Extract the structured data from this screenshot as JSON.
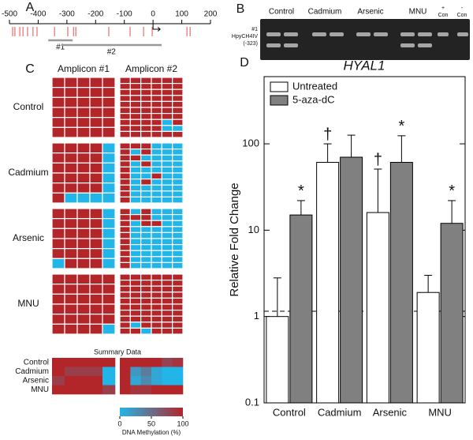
{
  "panel_labels": [
    "A",
    "B",
    "C",
    "D"
  ],
  "panel_a": {
    "xlim": [
      -500,
      200
    ],
    "xticks": [
      -500,
      -400,
      -300,
      -200,
      -100,
      0,
      100,
      200
    ],
    "cpg_sites": [
      -489,
      -481,
      -464,
      -453,
      -437,
      -418,
      -404,
      -343,
      -297,
      -277,
      -269,
      -154,
      -80,
      -33,
      -3,
      118,
      129
    ],
    "amplicons": [
      {
        "label": "#1",
        "range": [
          -365,
          -280
        ]
      },
      {
        "label": "#2",
        "range": [
          -320,
          30
        ]
      }
    ]
  },
  "panel_b": {
    "lanes": [
      "Control",
      "Cadmium",
      "Arsenic",
      "MNU"
    ],
    "controls": [
      [
        "+",
        "Con"
      ],
      [
        "-",
        "Con"
      ]
    ],
    "side_label": [
      "#1",
      "HpyCH4IV",
      "(-323)"
    ]
  },
  "panel_c": {
    "headers": [
      "Amplicon #1",
      "Amplicon #2"
    ],
    "groups": [
      {
        "name": "Control",
        "amplicon_1": [
          [
            1,
            1,
            1,
            1,
            1
          ],
          [
            1,
            1,
            1,
            1,
            1
          ],
          [
            1,
            1,
            1,
            1,
            1
          ],
          [
            1,
            1,
            1,
            1,
            1
          ],
          [
            1,
            1,
            1,
            1,
            1
          ],
          [
            1,
            1,
            1,
            1,
            1
          ]
        ],
        "amplicon_2": [
          [
            1,
            1,
            1,
            1,
            1,
            1
          ],
          [
            1,
            1,
            1,
            1,
            1,
            1
          ],
          [
            1,
            1,
            1,
            1,
            1,
            1
          ],
          [
            1,
            1,
            1,
            1,
            1,
            1
          ],
          [
            1,
            1,
            1,
            1,
            1,
            1
          ],
          [
            1,
            1,
            1,
            1,
            1,
            1
          ],
          [
            1,
            1,
            1,
            1,
            1,
            1
          ],
          [
            1,
            1,
            1,
            1,
            0,
            1
          ],
          [
            1,
            1,
            1,
            1,
            0,
            0
          ],
          [
            1,
            1,
            1,
            1,
            1,
            1
          ]
        ]
      },
      {
        "name": "Cadmium",
        "amplicon_1": [
          [
            1,
            1,
            1,
            1,
            0
          ],
          [
            1,
            1,
            1,
            1,
            0
          ],
          [
            1,
            1,
            1,
            1,
            0
          ],
          [
            1,
            1,
            1,
            1,
            0
          ],
          [
            1,
            1,
            1,
            1,
            0
          ],
          [
            1,
            0,
            0,
            0,
            0
          ]
        ],
        "amplicon_2": [
          [
            1,
            1,
            1,
            0,
            0,
            0
          ],
          [
            1,
            0,
            1,
            0,
            0,
            0
          ],
          [
            1,
            1,
            0,
            0,
            0,
            0
          ],
          [
            1,
            0,
            1,
            0,
            0,
            0
          ],
          [
            1,
            0,
            0,
            0,
            0,
            0
          ],
          [
            1,
            0,
            0,
            1,
            0,
            0
          ],
          [
            1,
            0,
            1,
            0,
            0,
            0
          ],
          [
            1,
            0,
            0,
            0,
            0,
            0
          ],
          [
            1,
            0,
            0,
            0,
            0,
            0
          ],
          [
            1,
            0,
            0,
            0,
            0,
            0
          ]
        ]
      },
      {
        "name": "Arsenic",
        "amplicon_1": [
          [
            1,
            1,
            1,
            1,
            0
          ],
          [
            1,
            1,
            1,
            1,
            0
          ],
          [
            1,
            1,
            1,
            1,
            0
          ],
          [
            1,
            1,
            1,
            1,
            0
          ],
          [
            1,
            1,
            1,
            1,
            0
          ],
          [
            0,
            1,
            1,
            1,
            0
          ]
        ],
        "amplicon_2": [
          [
            1,
            0,
            1,
            0,
            0,
            0
          ],
          [
            1,
            1,
            1,
            0,
            0,
            0
          ],
          [
            1,
            0,
            1,
            1,
            0,
            0
          ],
          [
            1,
            0,
            0,
            0,
            0,
            0
          ],
          [
            1,
            0,
            0,
            0,
            0,
            0
          ],
          [
            1,
            0,
            0,
            0,
            0,
            0
          ],
          [
            1,
            0,
            0,
            0,
            0,
            0
          ],
          [
            1,
            0,
            0,
            0,
            0,
            0
          ],
          [
            1,
            0,
            0,
            0,
            0,
            0
          ],
          [
            1,
            0,
            0,
            0,
            0,
            0
          ]
        ]
      },
      {
        "name": "MNU",
        "amplicon_1": [
          [
            1,
            1,
            1,
            1,
            1
          ],
          [
            1,
            1,
            1,
            1,
            1
          ],
          [
            1,
            1,
            1,
            1,
            1
          ],
          [
            1,
            1,
            1,
            1,
            1
          ],
          [
            1,
            1,
            1,
            1,
            1
          ],
          [
            1,
            1,
            1,
            1,
            0
          ]
        ],
        "amplicon_2": [
          [
            1,
            1,
            1,
            1,
            1,
            1
          ],
          [
            1,
            1,
            1,
            1,
            1,
            1
          ],
          [
            1,
            1,
            1,
            1,
            1,
            1
          ],
          [
            1,
            1,
            1,
            1,
            1,
            1
          ],
          [
            1,
            1,
            1,
            1,
            1,
            1
          ],
          [
            1,
            1,
            1,
            1,
            1,
            1
          ],
          [
            1,
            1,
            1,
            1,
            1,
            1
          ],
          [
            1,
            1,
            1,
            1,
            1,
            1
          ],
          [
            1,
            0,
            1,
            1,
            1,
            1
          ],
          [
            1,
            1,
            0,
            1,
            1,
            1
          ]
        ]
      }
    ],
    "summary": {
      "title": "Summary Data",
      "rows": [
        "Control",
        "Cadmium",
        "Arsenic",
        "MNU"
      ],
      "amplicon_1": [
        [
          100,
          100,
          100,
          100,
          100
        ],
        [
          100,
          83,
          83,
          83,
          0
        ],
        [
          83,
          100,
          100,
          100,
          0
        ],
        [
          100,
          100,
          100,
          100,
          83
        ]
      ],
      "amplicon_2": [
        [
          100,
          100,
          100,
          100,
          80,
          90
        ],
        [
          100,
          20,
          40,
          10,
          0,
          0
        ],
        [
          100,
          10,
          30,
          10,
          0,
          0
        ],
        [
          100,
          90,
          90,
          100,
          100,
          100
        ]
      ],
      "colorbar": {
        "lim": [
          0,
          100
        ],
        "ticks": [
          0,
          50,
          100
        ],
        "label": "DNA Methylation (%)"
      }
    }
  },
  "chart_data": {
    "type": "bar",
    "title": "HYAL1",
    "y_label": "Relative Fold Change",
    "categories": [
      "Control",
      "Cadmium",
      "Arsenic",
      "MNU"
    ],
    "series": [
      {
        "name": "Untreated",
        "color": "#ffffff",
        "values": [
          1,
          61,
          16,
          1.9
        ],
        "errors": [
          1.8,
          39,
          35,
          1.1
        ],
        "annotations": [
          null,
          "†",
          "†",
          null
        ]
      },
      {
        "name": "5-aza-dC",
        "color": "#808080",
        "values": [
          15,
          70,
          61,
          12
        ],
        "errors": [
          7,
          56,
          63,
          10
        ],
        "annotations": [
          "*",
          null,
          "*",
          "*"
        ]
      }
    ],
    "ylim": [
      0.1,
      600
    ],
    "yticks": [
      0.1,
      1,
      10,
      100
    ],
    "log_scale": true,
    "reference_line": 1.15,
    "legend": "upper left"
  }
}
